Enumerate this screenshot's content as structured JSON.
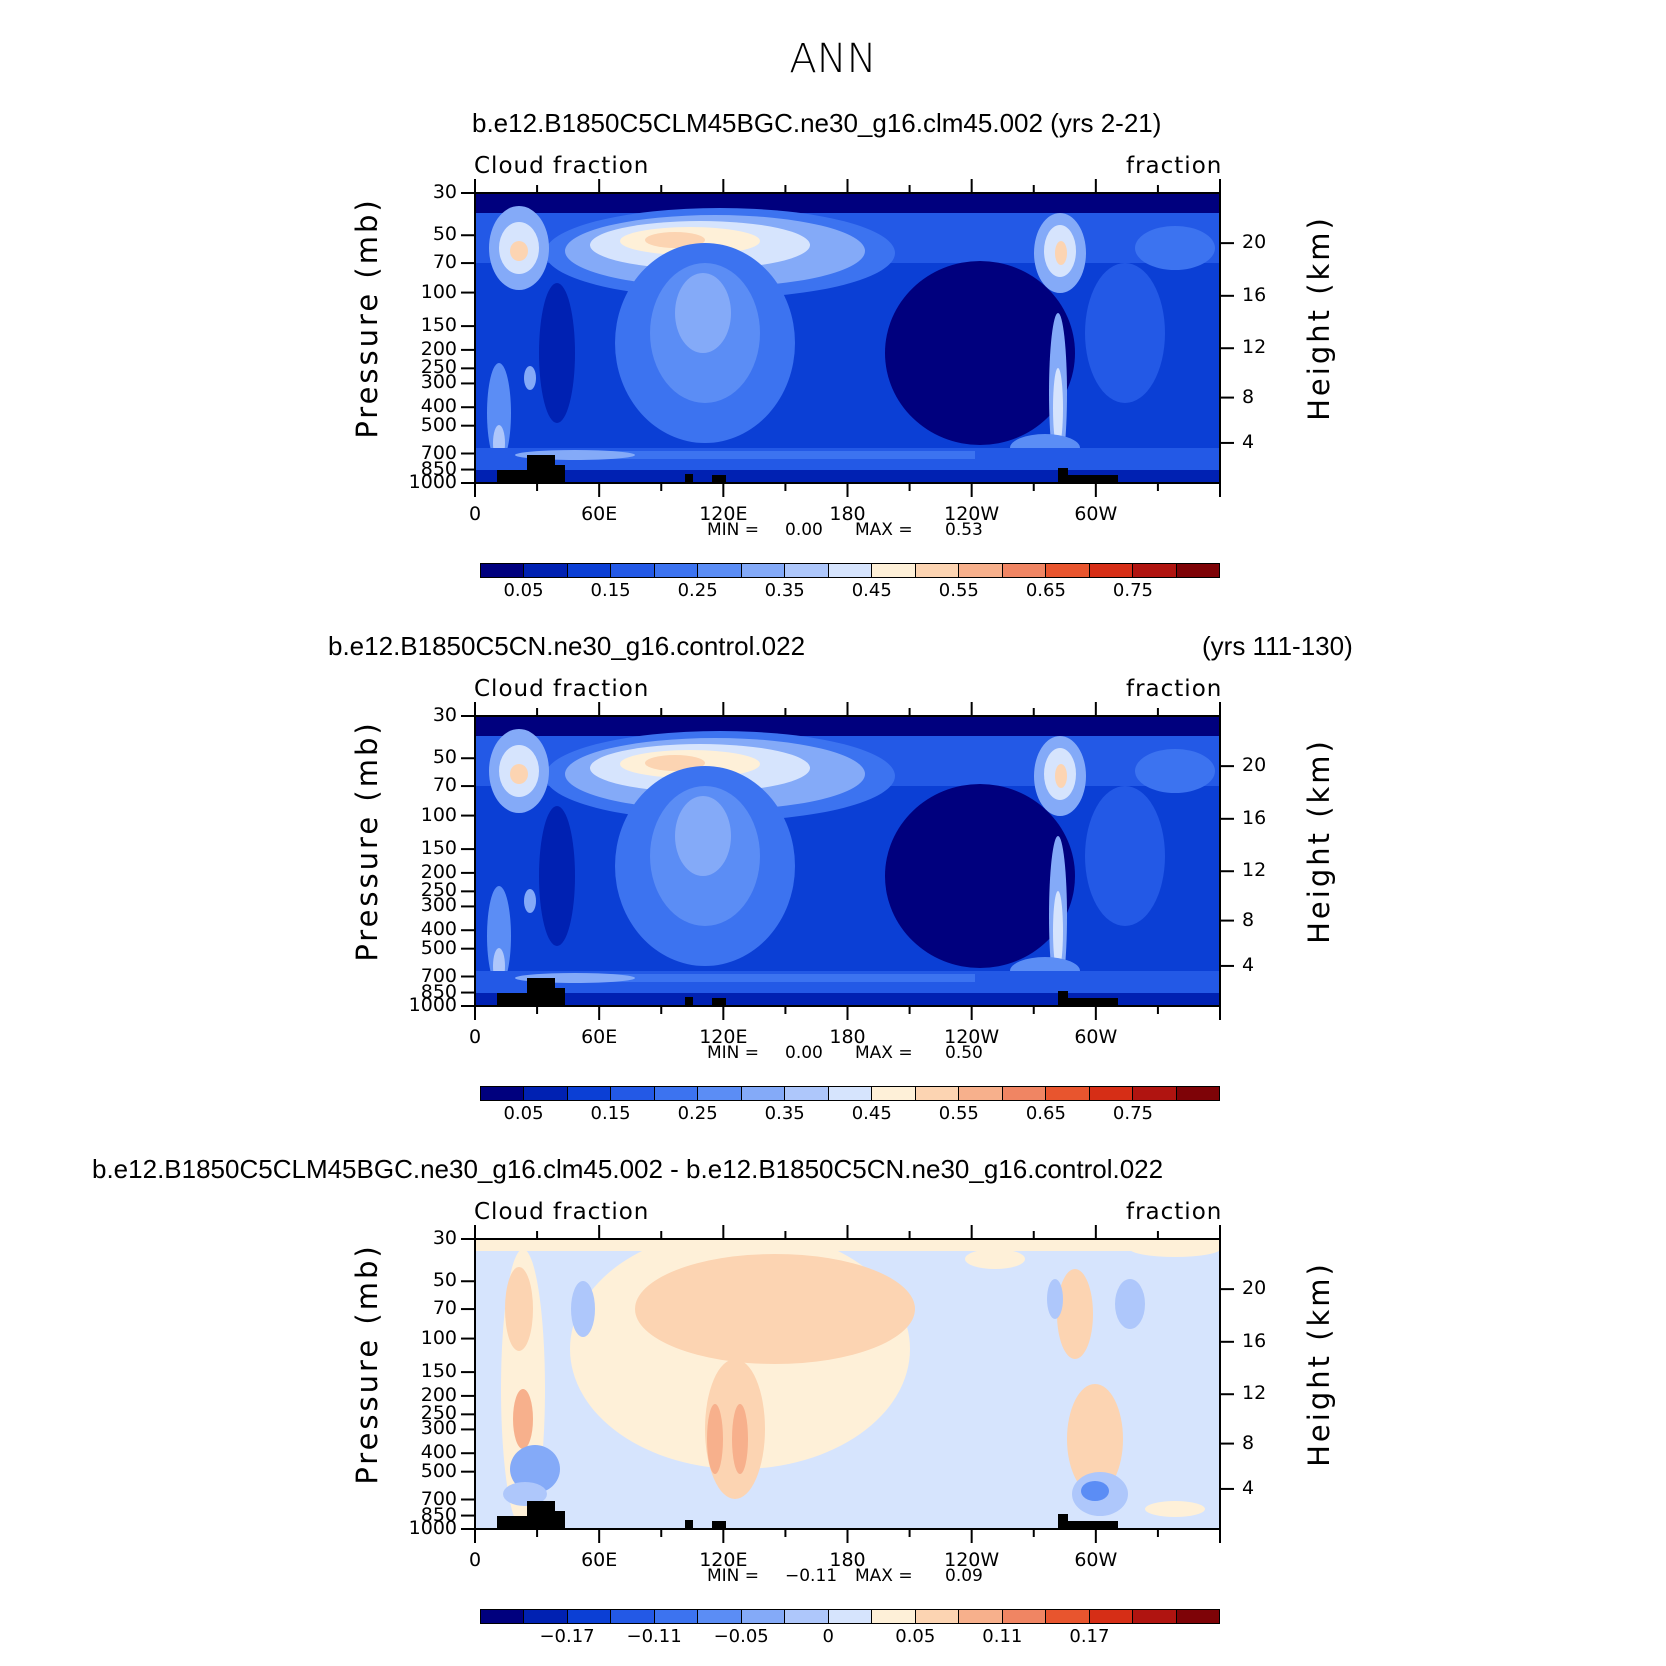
{
  "title": "ANN",
  "colors": {
    "seq": [
      "#00007e",
      "#0021b2",
      "#0b3fd5",
      "#2359e6",
      "#3c73f0",
      "#5b8df5",
      "#84aaf8",
      "#aec7fb",
      "#d6e4fd",
      "#fef0d8",
      "#fcd4b2",
      "#f7b08c",
      "#f08563",
      "#e8552e",
      "#d62e16",
      "#b01410",
      "#7e0307"
    ],
    "land": "#000000"
  },
  "panels": [
    {
      "title_left": "b.e12.B1850C5CLM45BGC.ne30_g16.clm45.002 (yrs 2-21)",
      "title_right": "",
      "left_string": "Cloud fraction",
      "right_string": "fraction",
      "ylabel": "Pressure (mb)",
      "ylabel_right": "Height (km)",
      "min_label": "MIN =",
      "min_value": "0.00",
      "max_label": "MAX =",
      "max_value": "0.53",
      "colorbar_labels": [
        "0.05",
        "0.15",
        "0.25",
        "0.35",
        "0.45",
        "0.55",
        "0.65",
        "0.75"
      ]
    },
    {
      "title_left": "b.e12.B1850C5CN.ne30_g16.control.022",
      "title_right": "(yrs 111-130)",
      "left_string": "Cloud fraction",
      "right_string": "fraction",
      "ylabel": "Pressure (mb)",
      "ylabel_right": "Height (km)",
      "min_label": "MIN =",
      "min_value": "0.00",
      "max_label": "MAX =",
      "max_value": "0.50",
      "colorbar_labels": [
        "0.05",
        "0.15",
        "0.25",
        "0.35",
        "0.45",
        "0.55",
        "0.65",
        "0.75"
      ]
    },
    {
      "title_left": "b.e12.B1850C5CLM45BGC.ne30_g16.clm45.002 - b.e12.B1850C5CN.ne30_g16.control.022",
      "title_right": "",
      "left_string": "Cloud fraction",
      "right_string": "fraction",
      "ylabel": "Pressure (mb)",
      "ylabel_right": "Height (km)",
      "min_label": "MIN =",
      "min_value": "−0.11",
      "max_label": "MAX =",
      "max_value": "0.09",
      "colorbar_labels": [
        "−0.17",
        "−0.11",
        "−0.05",
        "0",
        "0.05",
        "0.11",
        "0.17"
      ]
    }
  ],
  "chart_data": [
    {
      "type": "heatmap",
      "title": "b.e12.B1850C5CLM45BGC.ne30_g16.clm45.002 (yrs 2-21)",
      "variable": "Cloud fraction",
      "units": "fraction",
      "xlabel": "",
      "ylabel": "Pressure (mb)",
      "ylabel_right": "Height (km)",
      "x_ticks": [
        "0",
        "60E",
        "120E",
        "180",
        "120W",
        "60W"
      ],
      "x_range": [
        0,
        360
      ],
      "y_ticks": [
        "30",
        "50",
        "70",
        "100",
        "150",
        "200",
        "250",
        "300",
        "400",
        "500",
        "700",
        "850",
        "1000"
      ],
      "y_range_mb": [
        30,
        1000
      ],
      "y_ticks_right": [
        "20",
        "16",
        "12",
        "8",
        "4"
      ],
      "min": 0.0,
      "max": 0.53,
      "contour_levels": [
        0.05,
        0.15,
        0.25,
        0.35,
        0.45,
        0.55,
        0.65,
        0.75
      ],
      "colorbar_labels": [
        "0.05",
        "0.15",
        "0.25",
        "0.35",
        "0.45",
        "0.55",
        "0.65",
        "0.75"
      ]
    },
    {
      "type": "heatmap",
      "title": "b.e12.B1850C5CN.ne30_g16.control.022 (yrs 111-130)",
      "variable": "Cloud fraction",
      "units": "fraction",
      "xlabel": "",
      "ylabel": "Pressure (mb)",
      "ylabel_right": "Height (km)",
      "x_ticks": [
        "0",
        "60E",
        "120E",
        "180",
        "120W",
        "60W"
      ],
      "x_range": [
        0,
        360
      ],
      "y_ticks": [
        "30",
        "50",
        "70",
        "100",
        "150",
        "200",
        "250",
        "300",
        "400",
        "500",
        "700",
        "850",
        "1000"
      ],
      "y_range_mb": [
        30,
        1000
      ],
      "y_ticks_right": [
        "20",
        "16",
        "12",
        "8",
        "4"
      ],
      "min": 0.0,
      "max": 0.5,
      "contour_levels": [
        0.05,
        0.15,
        0.25,
        0.35,
        0.45,
        0.55,
        0.65,
        0.75
      ],
      "colorbar_labels": [
        "0.05",
        "0.15",
        "0.25",
        "0.35",
        "0.45",
        "0.55",
        "0.65",
        "0.75"
      ]
    },
    {
      "type": "heatmap",
      "title": "b.e12.B1850C5CLM45BGC.ne30_g16.clm45.002 - b.e12.B1850C5CN.ne30_g16.control.022",
      "variable": "Cloud fraction",
      "units": "fraction",
      "xlabel": "",
      "ylabel": "Pressure (mb)",
      "ylabel_right": "Height (km)",
      "x_ticks": [
        "0",
        "60E",
        "120E",
        "180",
        "120W",
        "60W"
      ],
      "x_range": [
        0,
        360
      ],
      "y_ticks": [
        "30",
        "50",
        "70",
        "100",
        "150",
        "200",
        "250",
        "300",
        "400",
        "500",
        "700",
        "850",
        "1000"
      ],
      "y_range_mb": [
        30,
        1000
      ],
      "y_ticks_right": [
        "20",
        "16",
        "12",
        "8",
        "4"
      ],
      "min": -0.11,
      "max": 0.09,
      "contour_levels": [
        -0.17,
        -0.11,
        -0.05,
        0,
        0.05,
        0.11,
        0.17
      ],
      "colorbar_labels": [
        "−0.17",
        "−0.11",
        "−0.05",
        "0",
        "0.05",
        "0.11",
        "0.17"
      ]
    }
  ]
}
